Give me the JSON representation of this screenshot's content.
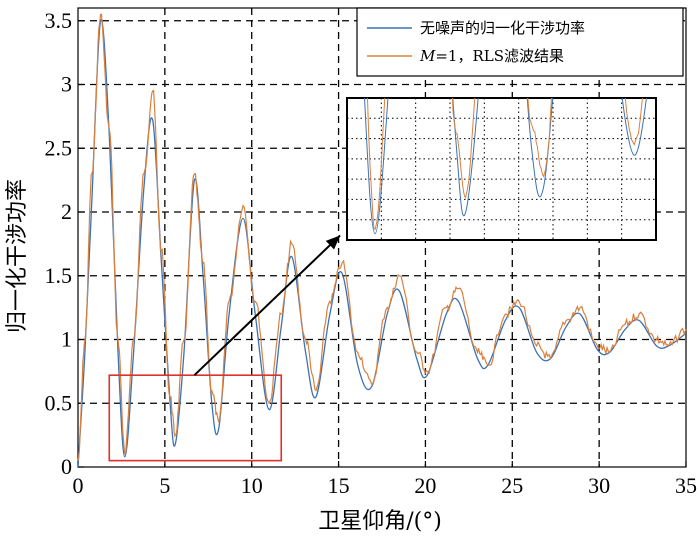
{
  "chart_data": {
    "type": "line",
    "xlabel": "卫星仰角/(°)",
    "ylabel": "归一化干涉功率",
    "xlim": [
      0,
      35
    ],
    "ylim": [
      0,
      3.6
    ],
    "xticks": [
      0,
      5,
      10,
      15,
      20,
      25,
      30,
      35
    ],
    "yticks": [
      0,
      0.5,
      1,
      1.5,
      2,
      2.5,
      3,
      3.5
    ],
    "xtick_labels": [
      "0",
      "5",
      "10",
      "15",
      "20",
      "25",
      "30",
      "35"
    ],
    "ytick_labels": [
      "0",
      "0.5",
      "1",
      "1.5",
      "2",
      "2.5",
      "3",
      "3.5"
    ],
    "grid": true,
    "legend_position": "top-right",
    "series": [
      {
        "name": "无噪声的归一化干涉功率",
        "color": "#3b72b5",
        "points": [
          [
            0,
            0.0
          ],
          [
            0.4,
            0.9
          ],
          [
            0.8,
            2.1
          ],
          [
            1.3,
            3.5
          ],
          [
            1.8,
            2.6
          ],
          [
            2.3,
            0.9
          ],
          [
            2.7,
            0.08
          ],
          [
            3.2,
            0.9
          ],
          [
            3.8,
            2.2
          ],
          [
            4.3,
            2.72
          ],
          [
            4.8,
            1.6
          ],
          [
            5.3,
            0.5
          ],
          [
            5.6,
            0.18
          ],
          [
            6.1,
            0.9
          ],
          [
            6.7,
            2.25
          ],
          [
            7.2,
            1.5
          ],
          [
            7.7,
            0.5
          ],
          [
            8.1,
            0.3
          ],
          [
            8.7,
            1.2
          ],
          [
            9.5,
            1.95
          ],
          [
            10.2,
            1.2
          ],
          [
            11.0,
            0.45
          ],
          [
            11.7,
            1.1
          ],
          [
            12.3,
            1.65
          ],
          [
            13.1,
            0.9
          ],
          [
            13.7,
            0.55
          ],
          [
            14.5,
            1.2
          ],
          [
            15.2,
            1.52
          ],
          [
            16.1,
            0.8
          ],
          [
            16.9,
            0.63
          ],
          [
            17.8,
            1.2
          ],
          [
            18.5,
            1.38
          ],
          [
            19.5,
            0.85
          ],
          [
            20.1,
            0.72
          ],
          [
            21.2,
            1.2
          ],
          [
            21.9,
            1.3
          ],
          [
            23.0,
            0.85
          ],
          [
            23.6,
            0.8
          ],
          [
            24.6,
            1.15
          ],
          [
            25.4,
            1.25
          ],
          [
            26.4,
            0.9
          ],
          [
            27.2,
            0.85
          ],
          [
            28.1,
            1.1
          ],
          [
            28.9,
            1.2
          ],
          [
            29.9,
            0.92
          ],
          [
            30.6,
            0.9
          ],
          [
            31.5,
            1.08
          ],
          [
            32.3,
            1.15
          ],
          [
            33.3,
            0.95
          ],
          [
            34.0,
            0.95
          ],
          [
            35,
            1.05
          ]
        ]
      },
      {
        "name": "M=1，RLS滤波结果",
        "color": "#d9803f",
        "points": [
          [
            0,
            0.05
          ],
          [
            0.4,
            1.0
          ],
          [
            0.8,
            2.3
          ],
          [
            1.3,
            3.55
          ],
          [
            1.8,
            2.65
          ],
          [
            2.3,
            1.0
          ],
          [
            2.7,
            0.1
          ],
          [
            3.2,
            1.0
          ],
          [
            3.8,
            2.3
          ],
          [
            4.3,
            2.95
          ],
          [
            4.8,
            1.7
          ],
          [
            5.3,
            0.55
          ],
          [
            5.6,
            0.25
          ],
          [
            6.1,
            1.0
          ],
          [
            6.7,
            2.3
          ],
          [
            7.2,
            1.6
          ],
          [
            7.7,
            0.6
          ],
          [
            8.1,
            0.35
          ],
          [
            8.7,
            1.3
          ],
          [
            9.5,
            2.05
          ],
          [
            10.2,
            1.3
          ],
          [
            11.0,
            0.5
          ],
          [
            11.7,
            1.2
          ],
          [
            12.3,
            1.75
          ],
          [
            13.1,
            1.0
          ],
          [
            13.7,
            0.6
          ],
          [
            14.5,
            1.3
          ],
          [
            15.2,
            1.6
          ],
          [
            16.1,
            0.9
          ],
          [
            16.9,
            0.65
          ],
          [
            17.8,
            1.25
          ],
          [
            18.5,
            1.5
          ],
          [
            19.5,
            0.9
          ],
          [
            20.1,
            0.75
          ],
          [
            21.2,
            1.25
          ],
          [
            21.9,
            1.4
          ],
          [
            23.0,
            0.9
          ],
          [
            23.6,
            0.8
          ],
          [
            24.6,
            1.2
          ],
          [
            25.4,
            1.3
          ],
          [
            26.4,
            0.95
          ],
          [
            27.2,
            0.85
          ],
          [
            28.1,
            1.15
          ],
          [
            28.9,
            1.25
          ],
          [
            29.9,
            0.95
          ],
          [
            30.6,
            0.9
          ],
          [
            31.5,
            1.12
          ],
          [
            32.3,
            1.2
          ],
          [
            33.3,
            1.0
          ],
          [
            34.0,
            0.95
          ],
          [
            35,
            1.08
          ]
        ]
      }
    ],
    "annotations": {
      "zoom_box_x": [
        1.8,
        11.7
      ],
      "zoom_box_y": [
        0.05,
        0.72
      ],
      "box_color": "#e0302a",
      "arrow_from": [
        6.7,
        0.72
      ],
      "arrow_to": [
        15.2,
        1.8
      ]
    }
  },
  "legend": {
    "entry1": "无噪声的归一化干涉功率",
    "entry2_italic": "M",
    "entry2_rest": "=1，RLS滤波结果"
  }
}
